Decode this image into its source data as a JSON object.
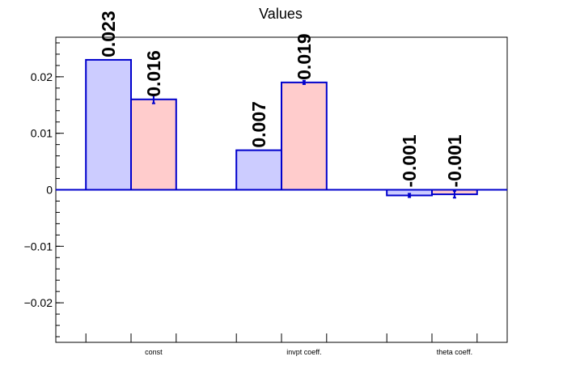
{
  "chart_data": {
    "type": "bar",
    "title": "Values",
    "xlabel": "",
    "ylabel": "",
    "categories": [
      "const",
      "invpt coeff.",
      "theta coeff."
    ],
    "series": [
      {
        "values": [
          0.023,
          0.007,
          -0.001
        ],
        "errors": [
          0.0,
          0.0,
          0.0003
        ],
        "labels": [
          "0.023",
          "0.007",
          "-0.001"
        ],
        "fill": "#ccccff",
        "stroke": "#0000cc"
      },
      {
        "values": [
          0.016,
          0.019,
          -0.0008
        ],
        "errors": [
          0.0007,
          0.0003,
          0.0006
        ],
        "labels": [
          "0.016",
          "0.019",
          "-0.001"
        ],
        "fill": "#ffcccc",
        "stroke": "#0000cc"
      }
    ],
    "ylim": [
      -0.027,
      0.027
    ],
    "yticks": [
      {
        "value": -0.02,
        "label": "−0.02"
      },
      {
        "value": -0.01,
        "label": "−0.01"
      },
      {
        "value": 0,
        "label": "0"
      },
      {
        "value": 0.01,
        "label": "0.01"
      },
      {
        "value": 0.02,
        "label": "0.02"
      }
    ],
    "grid": false,
    "legend": "none"
  }
}
